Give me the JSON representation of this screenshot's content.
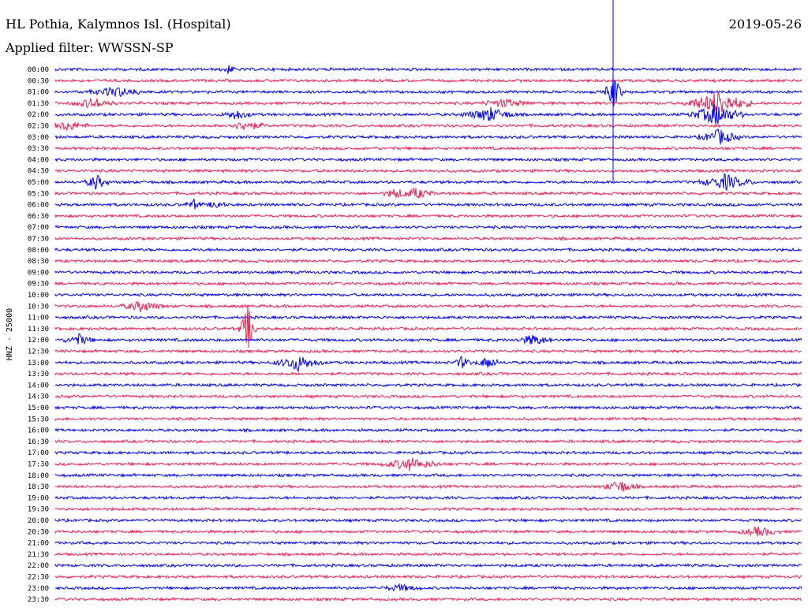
{
  "header": {
    "station": "HL Pothia, Kalymnos Isl. (Hospital)",
    "date": "2019-05-26",
    "filter": "Applied filter: WWSSN-SP"
  },
  "axis_label": "HNZ - 25000",
  "rows": [
    "00:00",
    "00:30",
    "01:00",
    "01:30",
    "02:00",
    "02:30",
    "03:00",
    "03:30",
    "04:00",
    "04:30",
    "05:00",
    "05:30",
    "06:00",
    "06:30",
    "07:00",
    "07:30",
    "08:00",
    "08:30",
    "09:00",
    "09:30",
    "10:00",
    "10:30",
    "11:00",
    "11:30",
    "12:00",
    "12:30",
    "13:00",
    "13:30",
    "14:00",
    "14:30",
    "15:00",
    "15:30",
    "16:00",
    "16:30",
    "17:00",
    "17:30",
    "18:00",
    "18:30",
    "19:00",
    "19:30",
    "20:00",
    "20:30",
    "21:00",
    "21:30",
    "22:00",
    "22:30",
    "23:00",
    "23:30"
  ]
}
